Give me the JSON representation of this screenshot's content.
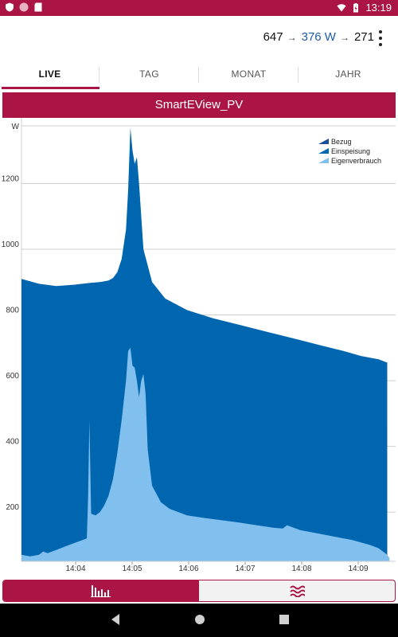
{
  "status_bar": {
    "time": "13:19"
  },
  "header": {
    "flow": {
      "left_value": "647",
      "middle_value": "376 W",
      "right_value": "271",
      "arrow": "→"
    }
  },
  "tabs": [
    {
      "label": "LIVE",
      "active": true
    },
    {
      "label": "TAG",
      "active": false
    },
    {
      "label": "MONAT",
      "active": false
    },
    {
      "label": "JAHR",
      "active": false
    }
  ],
  "title": "SmartEView_PV",
  "colors": {
    "brand": "#ab1545",
    "einspeisung": "#0066b0",
    "eigenverbrauch": "#80bfee",
    "bezug": "#1c4f99"
  },
  "chart_data": {
    "type": "area",
    "ylabel": "W",
    "ylim": [
      50,
      1400
    ],
    "yticks": [
      200,
      400,
      600,
      800,
      1000,
      1200
    ],
    "xticks": [
      "14:04",
      "14:05",
      "14:06",
      "14:07",
      "14:08",
      "14:09"
    ],
    "legend_position": "top-right",
    "series": [
      {
        "name": "Bezug",
        "values": []
      },
      {
        "name": "Einspeisung",
        "points": [
          [
            0,
            910
          ],
          [
            4,
            895
          ],
          [
            8,
            888
          ],
          [
            12,
            892
          ],
          [
            16,
            898
          ],
          [
            18,
            900
          ],
          [
            20,
            905
          ],
          [
            21,
            912
          ],
          [
            22,
            930
          ],
          [
            23,
            970
          ],
          [
            24,
            1060
          ],
          [
            24.5,
            1180
          ],
          [
            25,
            1370
          ],
          [
            25.5,
            1300
          ],
          [
            26,
            1260
          ],
          [
            26.5,
            1280
          ],
          [
            27,
            1200
          ],
          [
            28,
            1000
          ],
          [
            30,
            900
          ],
          [
            33,
            850
          ],
          [
            38,
            815
          ],
          [
            44,
            790
          ],
          [
            50,
            770
          ],
          [
            56,
            750
          ],
          [
            62,
            730
          ],
          [
            68,
            710
          ],
          [
            74,
            690
          ],
          [
            78,
            675
          ],
          [
            82,
            665
          ],
          [
            84,
            655
          ]
        ]
      },
      {
        "name": "Eigenverbrauch",
        "points": [
          [
            0,
            70
          ],
          [
            2,
            65
          ],
          [
            4,
            70
          ],
          [
            5,
            80
          ],
          [
            6,
            75
          ],
          [
            8,
            85
          ],
          [
            10,
            95
          ],
          [
            12,
            105
          ],
          [
            14,
            115
          ],
          [
            15,
            120
          ],
          [
            15.3,
            250
          ],
          [
            15.6,
            480
          ],
          [
            16,
            195
          ],
          [
            17,
            190
          ],
          [
            18,
            200
          ],
          [
            19,
            220
          ],
          [
            20,
            250
          ],
          [
            21,
            300
          ],
          [
            22,
            380
          ],
          [
            23,
            480
          ],
          [
            24,
            600
          ],
          [
            24.5,
            690
          ],
          [
            25,
            700
          ],
          [
            25.5,
            645
          ],
          [
            26,
            640
          ],
          [
            26.5,
            600
          ],
          [
            27,
            550
          ],
          [
            27.5,
            600
          ],
          [
            28,
            620
          ],
          [
            28.5,
            560
          ],
          [
            29,
            390
          ],
          [
            30,
            280
          ],
          [
            32,
            230
          ],
          [
            34,
            210
          ],
          [
            38,
            190
          ],
          [
            42,
            182
          ],
          [
            46,
            175
          ],
          [
            50,
            168
          ],
          [
            54,
            160
          ],
          [
            58,
            152
          ],
          [
            60,
            150
          ],
          [
            61,
            160
          ],
          [
            62,
            155
          ],
          [
            64,
            145
          ],
          [
            68,
            135
          ],
          [
            72,
            125
          ],
          [
            76,
            115
          ],
          [
            80,
            100
          ],
          [
            82,
            90
          ],
          [
            83,
            80
          ],
          [
            84,
            70
          ],
          [
            84.5,
            60
          ]
        ]
      }
    ]
  }
}
